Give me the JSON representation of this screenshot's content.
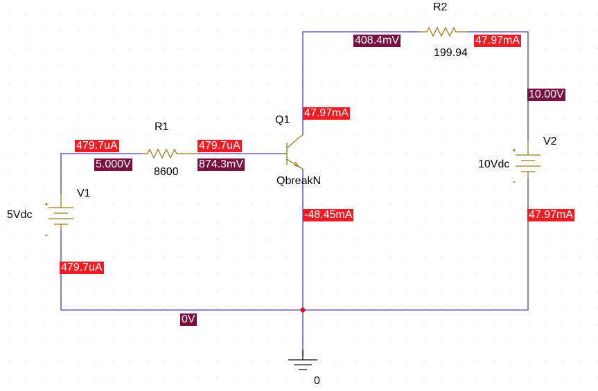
{
  "components": {
    "r1": {
      "ref": "R1",
      "value": "8600"
    },
    "r2": {
      "ref": "R2",
      "value": "199.94"
    },
    "q1": {
      "ref": "Q1",
      "model": "QbreakN"
    },
    "v1": {
      "ref": "V1",
      "value": "5Vdc"
    },
    "v2": {
      "ref": "V2",
      "value": "10Vdc"
    },
    "ground": {
      "label": "0"
    }
  },
  "currents": {
    "r1_left": "479.7uA",
    "r1_right": "479.7uA",
    "q1_collector": "47.97mA",
    "q1_emitter": "-48.45mA",
    "r2_right": "47.97mA",
    "v2_bottom": "47.97mA",
    "v1_bottom": "479.7uA"
  },
  "voltages": {
    "v1_node": "5.000V",
    "base_node": "874.3mV",
    "collector_node": "408.4mV",
    "v2_top_node": "10.00V",
    "ground_node": "0V"
  },
  "colors": {
    "wire": "#4b3bc8",
    "component": "#9b7a1e",
    "current_badge": "#ee1c24",
    "voltage_badge": "#7a1040",
    "junction": "#e01010",
    "grid_dot": "#d4d4d4"
  }
}
